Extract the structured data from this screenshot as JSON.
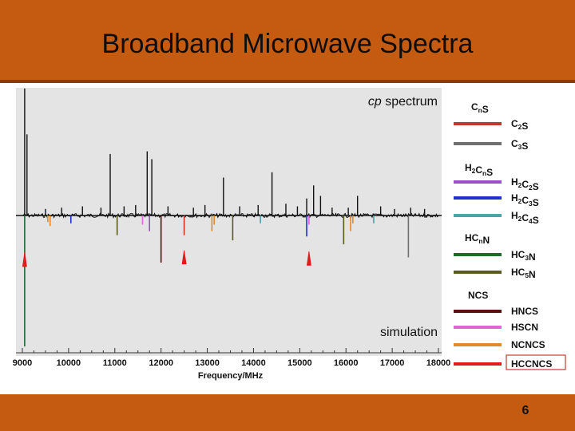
{
  "slide": {
    "title": "Broadband Microwave Spectra",
    "page_number": "6"
  },
  "chart_data": {
    "type": "bar",
    "xlabel": "Frequency/MHz",
    "xlim": [
      9000,
      18000
    ],
    "ylim": [
      -1,
      1
    ],
    "xticks": [
      9000,
      10000,
      11000,
      12000,
      13000,
      14000,
      15000,
      16000,
      17000,
      18000
    ],
    "annotations": [
      {
        "text_italic": "cp",
        "text": " spectrum"
      },
      {
        "text": "simulation"
      }
    ],
    "legend": {
      "placement": "right",
      "groups": [
        {
          "header": [
            {
              "t": "C"
            },
            {
              "t": "n",
              "sub": true
            },
            {
              "t": "S"
            }
          ],
          "items": [
            {
              "key": "C2S",
              "label": [
                {
                  "t": "C"
                },
                {
                  "t": "2",
                  "sub": true
                },
                {
                  "t": "S"
                }
              ],
              "color": "#c0392b"
            },
            {
              "key": "C3S",
              "label": [
                {
                  "t": "C"
                },
                {
                  "t": "3",
                  "sub": true
                },
                {
                  "t": "S"
                }
              ],
              "color": "#707070"
            }
          ]
        },
        {
          "header": [
            {
              "t": "H"
            },
            {
              "t": "2",
              "sub": true
            },
            {
              "t": "C"
            },
            {
              "t": "n",
              "sub": true
            },
            {
              "t": "S"
            }
          ],
          "items": [
            {
              "key": "H2C2S",
              "label": [
                {
                  "t": "H"
                },
                {
                  "t": "2",
                  "sub": true
                },
                {
                  "t": "C"
                },
                {
                  "t": "2",
                  "sub": true
                },
                {
                  "t": "S"
                }
              ],
              "color": "#9b4fc4"
            },
            {
              "key": "H2C3S",
              "label": [
                {
                  "t": "H"
                },
                {
                  "t": "2",
                  "sub": true
                },
                {
                  "t": "C"
                },
                {
                  "t": "3",
                  "sub": true
                },
                {
                  "t": "S"
                }
              ],
              "color": "#1f2fd0"
            },
            {
              "key": "H2C4S",
              "label": [
                {
                  "t": "H"
                },
                {
                  "t": "2",
                  "sub": true
                },
                {
                  "t": "C"
                },
                {
                  "t": "4",
                  "sub": true
                },
                {
                  "t": "S"
                }
              ],
              "color": "#4aa3a8"
            }
          ]
        },
        {
          "header": [
            {
              "t": "HC"
            },
            {
              "t": "n",
              "sub": true
            },
            {
              "t": "N"
            }
          ],
          "items": [
            {
              "key": "HC3N",
              "label": [
                {
                  "t": "HC"
                },
                {
                  "t": "3",
                  "sub": true
                },
                {
                  "t": "N"
                }
              ],
              "color": "#1e6a2a"
            },
            {
              "key": "HC5N",
              "label": [
                {
                  "t": "HC"
                },
                {
                  "t": "5",
                  "sub": true
                },
                {
                  "t": "N"
                }
              ],
              "color": "#5a5a1e"
            }
          ]
        },
        {
          "header": [
            {
              "t": "NCS"
            }
          ],
          "items": [
            {
              "key": "HNCS",
              "label": [
                {
                  "t": "HNCS"
                }
              ],
              "color": "#5a1010"
            },
            {
              "key": "HSCN",
              "label": [
                {
                  "t": "HSCN"
                }
              ],
              "color": "#e066d6"
            },
            {
              "key": "NCNCS",
              "label": [
                {
                  "t": "NCNCS"
                }
              ],
              "color": "#e08a2a"
            },
            {
              "key": "HCCNCS",
              "label": [
                {
                  "t": "HCCNCS"
                }
              ],
              "color": "#e01b1b",
              "boxed": true
            }
          ]
        }
      ]
    },
    "observed_lines": [
      {
        "x": 9050,
        "y": 0.97
      },
      {
        "x": 9100,
        "y": 0.62
      },
      {
        "x": 9500,
        "y": 0.05
      },
      {
        "x": 9850,
        "y": 0.06
      },
      {
        "x": 10300,
        "y": 0.07
      },
      {
        "x": 10700,
        "y": 0.06
      },
      {
        "x": 10900,
        "y": 0.47
      },
      {
        "x": 11200,
        "y": 0.07
      },
      {
        "x": 11450,
        "y": 0.08
      },
      {
        "x": 11700,
        "y": 0.49
      },
      {
        "x": 11800,
        "y": 0.43
      },
      {
        "x": 12150,
        "y": 0.07
      },
      {
        "x": 12700,
        "y": 0.06
      },
      {
        "x": 12950,
        "y": 0.08
      },
      {
        "x": 13350,
        "y": 0.29
      },
      {
        "x": 13700,
        "y": 0.07
      },
      {
        "x": 14100,
        "y": 0.08
      },
      {
        "x": 14400,
        "y": 0.33
      },
      {
        "x": 14700,
        "y": 0.09
      },
      {
        "x": 14950,
        "y": 0.07
      },
      {
        "x": 15150,
        "y": 0.13
      },
      {
        "x": 15300,
        "y": 0.23
      },
      {
        "x": 15450,
        "y": 0.15
      },
      {
        "x": 15700,
        "y": 0.06
      },
      {
        "x": 16050,
        "y": 0.06
      },
      {
        "x": 16250,
        "y": 0.15
      },
      {
        "x": 16750,
        "y": 0.07
      },
      {
        "x": 17050,
        "y": 0.05
      },
      {
        "x": 17400,
        "y": 0.06
      },
      {
        "x": 17700,
        "y": 0.05
      }
    ],
    "simulated_lines": [
      {
        "x": 9050,
        "y": -1.0,
        "species": "HC3N"
      },
      {
        "x": 9050,
        "y": -0.39,
        "species": "HCCNCS",
        "peak": true
      },
      {
        "x": 9550,
        "y": -0.05,
        "species": "NCNCS"
      },
      {
        "x": 9600,
        "y": -0.08,
        "species": "NCNCS"
      },
      {
        "x": 10050,
        "y": -0.06,
        "species": "H2C3S"
      },
      {
        "x": 11050,
        "y": -0.15,
        "species": "HC5N"
      },
      {
        "x": 11600,
        "y": -0.07,
        "species": "HSCN"
      },
      {
        "x": 11750,
        "y": -0.12,
        "species": "H2C2S"
      },
      {
        "x": 12000,
        "y": -0.36,
        "species": "HNCS"
      },
      {
        "x": 12500,
        "y": -0.15,
        "species": "C2S"
      },
      {
        "x": 12500,
        "y": -0.37,
        "species": "HCCNCS",
        "peak": true
      },
      {
        "x": 13100,
        "y": -0.12,
        "species": "NCNCS"
      },
      {
        "x": 13150,
        "y": -0.07,
        "species": "NCNCS"
      },
      {
        "x": 13550,
        "y": -0.19,
        "species": "HC5N"
      },
      {
        "x": 14150,
        "y": -0.06,
        "species": "H2C4S"
      },
      {
        "x": 15150,
        "y": -0.16,
        "species": "H2C3S"
      },
      {
        "x": 15200,
        "y": -0.07,
        "species": "HSCN"
      },
      {
        "x": 15200,
        "y": -0.38,
        "species": "HCCNCS",
        "peak": true
      },
      {
        "x": 15950,
        "y": -0.22,
        "species": "HC5N"
      },
      {
        "x": 16100,
        "y": -0.12,
        "species": "NCNCS"
      },
      {
        "x": 16150,
        "y": -0.06,
        "species": "NCNCS"
      },
      {
        "x": 16600,
        "y": -0.06,
        "species": "H2C4S"
      },
      {
        "x": 17350,
        "y": -0.32,
        "species": "C3S"
      }
    ]
  }
}
